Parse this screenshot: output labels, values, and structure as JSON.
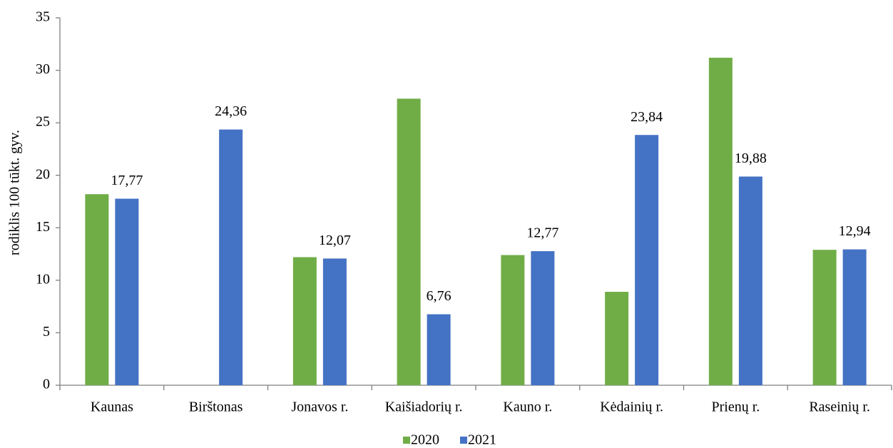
{
  "chart_data": {
    "type": "bar",
    "y_label": "rodiklis 100 tūkt. gyv.",
    "categories": [
      "Kaunas",
      "Birštonas",
      "Jonavos r.",
      "Kaišiadorių r.",
      "Kauno r.",
      "Kėdainių r.",
      "Prienų r.",
      "Raseinių r."
    ],
    "series": [
      {
        "name": "2020",
        "color": "#70ad47",
        "values": [
          18.2,
          null,
          12.2,
          27.3,
          12.4,
          8.9,
          31.2,
          12.9
        ]
      },
      {
        "name": "2021",
        "color": "#4472c4",
        "values": [
          17.77,
          24.36,
          12.07,
          6.76,
          12.77,
          23.84,
          19.88,
          12.94
        ],
        "value_labels": [
          "17,77",
          "24,36",
          "12,07",
          "6,76",
          "12,77",
          "23,84",
          "19,88",
          "12,94"
        ]
      }
    ],
    "ylim": [
      0,
      35
    ],
    "yticks": [
      0,
      5,
      10,
      15,
      20,
      25,
      30,
      35
    ],
    "legend": "bottom"
  }
}
